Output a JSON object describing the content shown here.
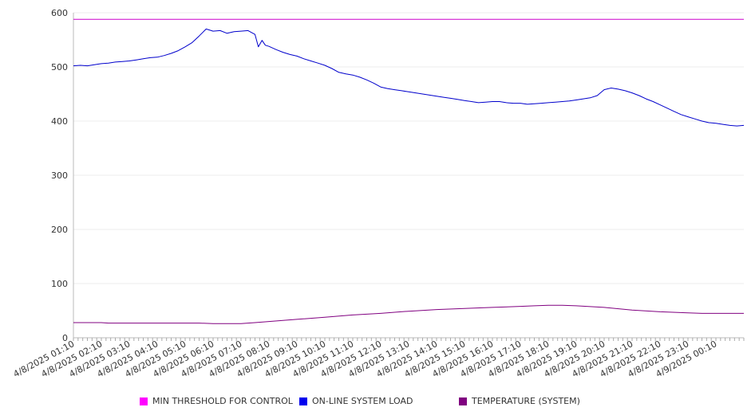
{
  "chart_data": {
    "type": "line",
    "title": "",
    "xlabel": "",
    "ylabel": "",
    "ylim": [
      0,
      600
    ],
    "yticks": [
      "0",
      "100",
      "200",
      "300",
      "400",
      "500",
      "600"
    ],
    "grid": true,
    "legend_placement": "bottom",
    "x_tick_labels": [
      "4/8/2025 01:10",
      "4/8/2025 02:10",
      "4/8/2025 03:10",
      "4/8/2025 04:10",
      "4/8/2025 05:10",
      "4/8/2025 06:10",
      "4/8/2025 07:10",
      "4/8/2025 08:10",
      "4/8/2025 09:10",
      "4/8/2025 10:10",
      "4/8/2025 11:10",
      "4/8/2025 12:10",
      "4/8/2025 13:10",
      "4/8/2025 14:10",
      "4/8/2025 15:10",
      "4/8/2025 16:10",
      "4/8/2025 17:10",
      "4/8/2025 18:10",
      "4/8/2025 19:10",
      "4/8/2025 20:10",
      "4/8/2025 21:10",
      "4/8/2025 22:10",
      "4/8/2025 23:10",
      "4/9/2025 00:10"
    ],
    "x_range_hours": [
      0,
      24
    ],
    "series": [
      {
        "name": "MIN THRESHOLD FOR CONTROL",
        "color": "#cc00cc",
        "x": [
          0,
          24
        ],
        "y": [
          588,
          588
        ]
      },
      {
        "name": "ON-LINE SYSTEM LOAD",
        "color": "#0000cc",
        "x": [
          0,
          0.25,
          0.5,
          0.75,
          1,
          1.25,
          1.5,
          1.75,
          2,
          2.25,
          2.5,
          2.75,
          3,
          3.25,
          3.5,
          3.75,
          4,
          4.25,
          4.5,
          4.75,
          5,
          5.25,
          5.5,
          5.75,
          6,
          6.25,
          6.5,
          6.62,
          6.75,
          6.87,
          7,
          7.25,
          7.5,
          7.75,
          8,
          8.25,
          8.5,
          8.75,
          9,
          9.25,
          9.5,
          9.75,
          10,
          10.25,
          10.5,
          10.75,
          11,
          11.25,
          11.5,
          11.75,
          12,
          12.25,
          12.5,
          12.75,
          13,
          13.25,
          13.5,
          13.75,
          14,
          14.25,
          14.5,
          14.75,
          15,
          15.25,
          15.5,
          15.75,
          16,
          16.25,
          16.5,
          16.75,
          17,
          17.25,
          17.5,
          17.75,
          18,
          18.25,
          18.5,
          18.75,
          19,
          19.25,
          19.5,
          19.75,
          20,
          20.25,
          20.5,
          20.75,
          21,
          21.25,
          21.5,
          21.75,
          22,
          22.25,
          22.5,
          22.75,
          23,
          23.25,
          23.5,
          23.75,
          24
        ],
        "y": [
          502,
          503,
          502,
          504,
          506,
          507,
          509,
          510,
          511,
          513,
          515,
          517,
          518,
          521,
          525,
          530,
          537,
          545,
          557,
          570,
          566,
          567,
          562,
          565,
          566,
          567,
          560,
          537,
          549,
          540,
          538,
          532,
          527,
          523,
          520,
          515,
          511,
          507,
          503,
          497,
          490,
          487,
          485,
          481,
          476,
          470,
          463,
          460,
          458,
          456,
          454,
          452,
          450,
          448,
          446,
          444,
          442,
          440,
          438,
          436,
          434,
          435,
          436,
          436,
          434,
          433,
          433,
          431,
          432,
          433,
          434,
          435,
          436,
          437,
          439,
          441,
          443,
          447,
          458,
          461,
          459,
          456,
          452,
          447,
          441,
          436,
          430,
          424,
          418,
          412,
          408,
          404,
          400,
          397,
          396,
          394,
          392,
          391,
          392
        ]
      },
      {
        "name": "TEMPERATURE (SYSTEM)",
        "color": "#800080",
        "x": [
          0,
          1,
          1.25,
          2,
          3,
          4,
          4.5,
          5,
          6,
          6.5,
          7,
          7.5,
          8,
          9,
          10,
          11,
          12,
          13,
          14,
          15,
          16,
          16.5,
          17,
          17.5,
          18,
          19,
          20,
          21,
          22,
          22.5,
          23,
          24
        ],
        "y": [
          28,
          28,
          27,
          27,
          27,
          27,
          27,
          26,
          26,
          28,
          30,
          32,
          34,
          38,
          42,
          45,
          49,
          52,
          54,
          56,
          58,
          59,
          60,
          60,
          59,
          56,
          51,
          48,
          46,
          45,
          45,
          45
        ]
      }
    ]
  }
}
